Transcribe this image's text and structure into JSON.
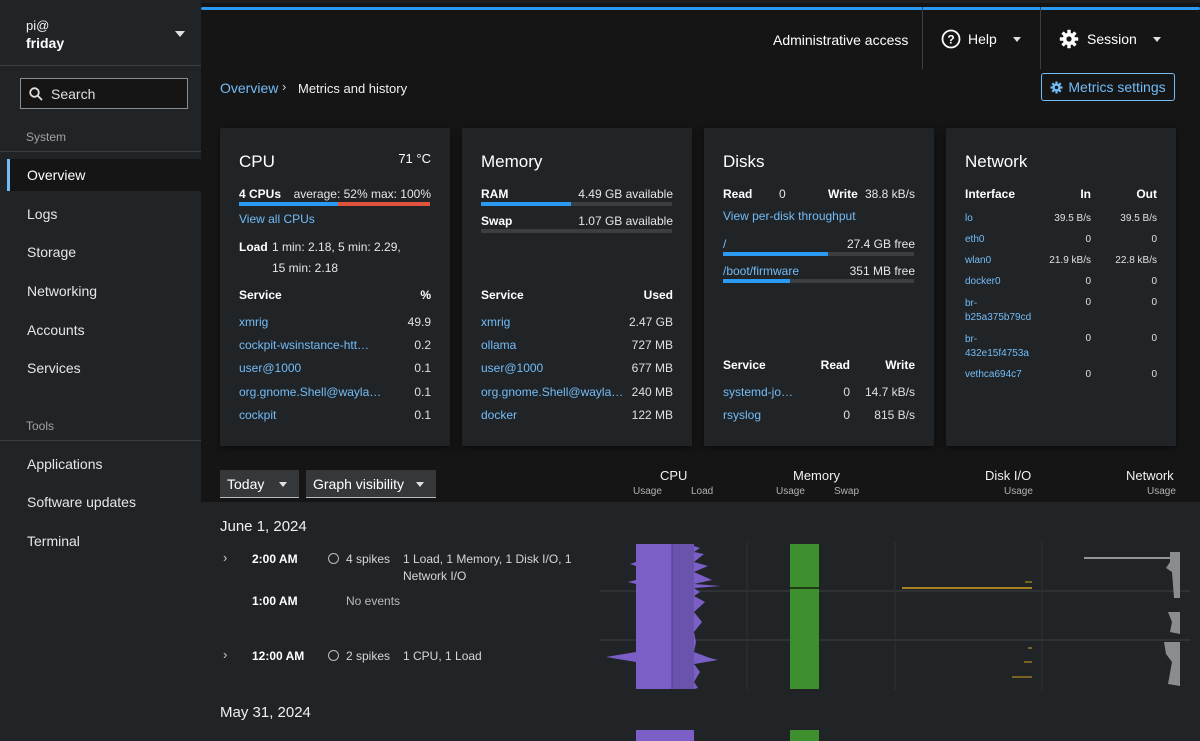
{
  "host": {
    "user": "pi@",
    "name": "friday"
  },
  "search": {
    "placeholder": "Search"
  },
  "nav": {
    "system_label": "System",
    "tools_label": "Tools",
    "system_items": [
      "Overview",
      "Logs",
      "Storage",
      "Networking",
      "Accounts",
      "Services"
    ],
    "tool_items": [
      "Applications",
      "Software updates",
      "Terminal"
    ]
  },
  "topbar": {
    "admin": "Administrative access",
    "help": "Help",
    "session": "Session"
  },
  "breadcrumb": {
    "parent": "Overview",
    "current": "Metrics and history"
  },
  "metrics_settings": "Metrics settings",
  "cpu": {
    "title": "CPU",
    "temp": "71 °C",
    "cpus": "4 CPUs",
    "avgmax": "average: 52% max: 100%",
    "usage_fraction": 0.52,
    "view_all": "View all CPUs",
    "load_label": "Load",
    "load_line1": "1 min: 2.18, 5 min: 2.29,",
    "load_line2": "15 min: 2.18",
    "col_service": "Service",
    "col_pct": "%",
    "rows": [
      {
        "name": "xmrig",
        "val": "49.9"
      },
      {
        "name": "cockpit-wsinstance-htt…",
        "val": "0.2"
      },
      {
        "name": "user@1000",
        "val": "0.1"
      },
      {
        "name": "org.gnome.Shell@wayla…",
        "val": "0.1"
      },
      {
        "name": "cockpit",
        "val": "0.1"
      }
    ]
  },
  "memory": {
    "title": "Memory",
    "ram_label": "RAM",
    "ram_avail": "4.49 GB available",
    "ram_used_fraction": 0.47,
    "swap_label": "Swap",
    "swap_avail": "1.07 GB available",
    "swap_used_fraction": 0.0,
    "col_service": "Service",
    "col_used": "Used",
    "rows": [
      {
        "name": "xmrig",
        "val": "2.47 GB"
      },
      {
        "name": "ollama",
        "val": "727 MB"
      },
      {
        "name": "user@1000",
        "val": "677 MB"
      },
      {
        "name": "org.gnome.Shell@wayla…",
        "val": "240 MB"
      },
      {
        "name": "docker",
        "val": "122 MB"
      }
    ]
  },
  "disks": {
    "title": "Disks",
    "read_label": "Read",
    "read_val": "0",
    "write_label": "Write",
    "write_val": "38.8 kB/s",
    "view_per_disk": "View per-disk throughput",
    "mounts": [
      {
        "path": "/",
        "free": "27.4 GB free",
        "used_fraction": 0.55
      },
      {
        "path": "/boot/firmware",
        "free": "351 MB free",
        "used_fraction": 0.35
      }
    ],
    "col_service": "Service",
    "col_read": "Read",
    "col_write": "Write",
    "rows": [
      {
        "name": "systemd-jo…",
        "read": "0",
        "write": "14.7 kB/s"
      },
      {
        "name": "rsyslog",
        "read": "0",
        "write": "815 B/s"
      }
    ]
  },
  "network": {
    "title": "Network",
    "col_iface": "Interface",
    "col_in": "In",
    "col_out": "Out",
    "rows": [
      {
        "name1": "lo",
        "name2": "",
        "in": "39.5 B/s",
        "out": "39.5 B/s"
      },
      {
        "name1": "eth0",
        "name2": "",
        "in": "0",
        "out": "0"
      },
      {
        "name1": "wlan0",
        "name2": "",
        "in": "21.9 kB/s",
        "out": "22.8 kB/s"
      },
      {
        "name1": "docker0",
        "name2": "",
        "in": "0",
        "out": "0"
      },
      {
        "name1": "br-",
        "name2": "b25a375b79cd",
        "in": "0",
        "out": "0"
      },
      {
        "name1": "br-",
        "name2": "432e15f4753a",
        "in": "0",
        "out": "0"
      },
      {
        "name1": "vethca694c7",
        "name2": "",
        "in": "0",
        "out": "0"
      }
    ]
  },
  "timeline": {
    "range": "Today",
    "graph_visibility": "Graph visibility",
    "headers": [
      {
        "title": "CPU",
        "sub1": "Usage",
        "sub2": "Load"
      },
      {
        "title": "Memory",
        "sub1": "Usage",
        "sub2": "Swap"
      },
      {
        "title": "Disk I/O",
        "sub1": "Usage",
        "sub2": ""
      },
      {
        "title": "Network",
        "sub1": "Usage",
        "sub2": ""
      }
    ],
    "date1": "June 1, 2024",
    "date2": "May 31, 2024",
    "events": [
      {
        "time": "2:00 AM",
        "spikes": "4 spikes",
        "desc1": "1 Load, 1 Memory, 1 Disk I/O, 1",
        "desc2": "Network I/O"
      },
      {
        "time": "1:00 AM",
        "spikes": "",
        "desc1": "No events",
        "desc2": ""
      },
      {
        "time": "12:00 AM",
        "spikes": "2 spikes",
        "desc1": "1 CPU, 1 Load",
        "desc2": ""
      }
    ]
  },
  "colors": {
    "accent": "#2b9af3",
    "link": "#73bcf7",
    "cpu_bar": "#7b5fc7",
    "mem_bar": "#3e8f2e",
    "disk_line": "#d4a21a",
    "net_line": "#b8bbbe",
    "cpu_over": "#e0523c"
  }
}
